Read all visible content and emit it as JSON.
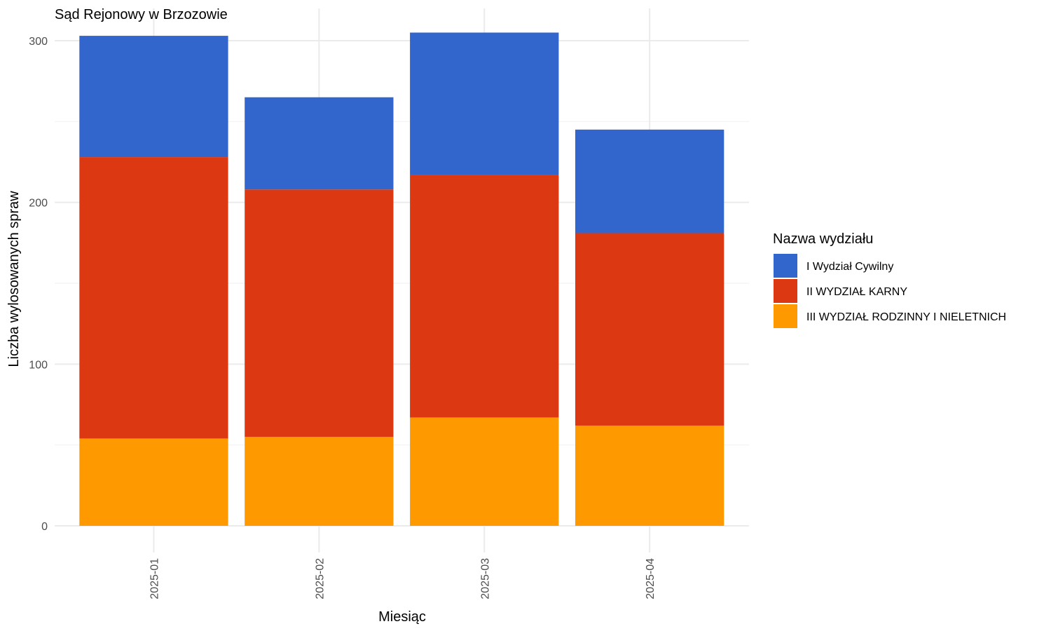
{
  "chart_data": {
    "type": "bar",
    "stacked": true,
    "title": "Sąd Rejonowy w Brzozowie",
    "xlabel": "Miesiąc",
    "ylabel": "Liczba wylosowanych spraw",
    "ylim": [
      0,
      305
    ],
    "yticks": [
      0,
      100,
      200,
      300
    ],
    "grid": true,
    "categories": [
      "2025-01",
      "2025-02",
      "2025-03",
      "2025-04"
    ],
    "series": [
      {
        "name": "III WYDZIAŁ RODZINNY I NIELETNICH",
        "color": "#FF9900",
        "values": [
          54,
          55,
          67,
          62
        ]
      },
      {
        "name": "II WYDZIAŁ KARNY",
        "color": "#DC3912",
        "values": [
          174,
          153,
          150,
          119
        ]
      },
      {
        "name": "I Wydział Cywilny",
        "color": "#3366CC",
        "values": [
          75,
          57,
          88,
          64
        ]
      }
    ],
    "legend": {
      "title": "Nazwa wydziału",
      "position": "right",
      "order": [
        "I Wydział Cywilny",
        "II WYDZIAŁ KARNY",
        "III WYDZIAŁ RODZINNY I NIELETNICH"
      ]
    }
  }
}
